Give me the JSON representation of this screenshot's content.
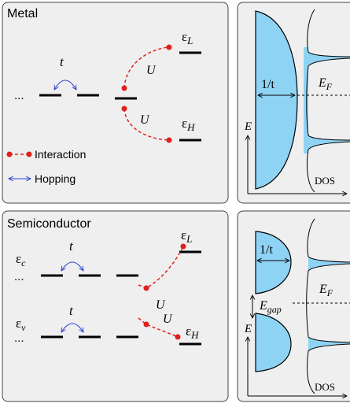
{
  "metal": {
    "title": "Metal",
    "ellipsis": "...",
    "hopping": "t",
    "epsilon_L": {
      "symbol": "ε",
      "sub": "L"
    },
    "epsilon_H": {
      "symbol": "ε",
      "sub": "H"
    },
    "interaction_labels": [
      "U",
      "U"
    ],
    "legend": {
      "interaction": "Interaction",
      "hopping": "Hopping"
    }
  },
  "metal_dos": {
    "width_label": "1/t",
    "fermi": {
      "symbol": "E",
      "sub": "F"
    },
    "energy_axis": "E",
    "dos_axis": "DOS"
  },
  "semiconductor": {
    "title": "Semiconductor",
    "ellipsis": [
      "...",
      "..."
    ],
    "hopping": [
      "t",
      "t"
    ],
    "epsilon_c": {
      "symbol": "ε",
      "sub": "c"
    },
    "epsilon_v": {
      "symbol": "ε",
      "sub": "v"
    },
    "epsilon_L": {
      "symbol": "ε",
      "sub": "L"
    },
    "epsilon_H": {
      "symbol": "ε",
      "sub": "H"
    },
    "interaction_labels": [
      "U",
      "U"
    ]
  },
  "semiconductor_dos": {
    "width_label": "1/t",
    "gap": {
      "symbol": "E",
      "sub": "gap"
    },
    "fermi": {
      "symbol": "E",
      "sub": "F"
    },
    "energy_axis": "E",
    "dos_axis": "DOS"
  }
}
